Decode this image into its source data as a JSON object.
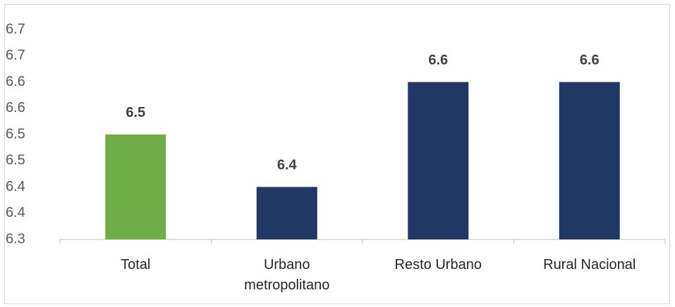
{
  "chart_data": {
    "type": "bar",
    "title": "",
    "xlabel": "",
    "ylabel": "",
    "categories": [
      [
        "Total"
      ],
      [
        "Urbano",
        "metropolitano"
      ],
      [
        "Resto Urbano"
      ],
      [
        "Rural Nacional"
      ]
    ],
    "values": [
      6.5,
      6.4,
      6.6,
      6.6
    ],
    "data_labels": [
      "6.5",
      "6.4",
      "6.6",
      "6.6"
    ],
    "bar_colors": [
      "#70ad47",
      "#203864",
      "#203864",
      "#203864"
    ],
    "ylim": [
      6.3,
      6.7
    ],
    "y_ticks": [
      6.3,
      6.35,
      6.4,
      6.45,
      6.5,
      6.55,
      6.6,
      6.65,
      6.7
    ],
    "y_tick_labels": [
      "6.3",
      "6.4",
      "6.4",
      "6.5",
      "6.5",
      "6.6",
      "6.6",
      "6.7",
      "6.7"
    ],
    "grid": false,
    "legend": "none"
  }
}
